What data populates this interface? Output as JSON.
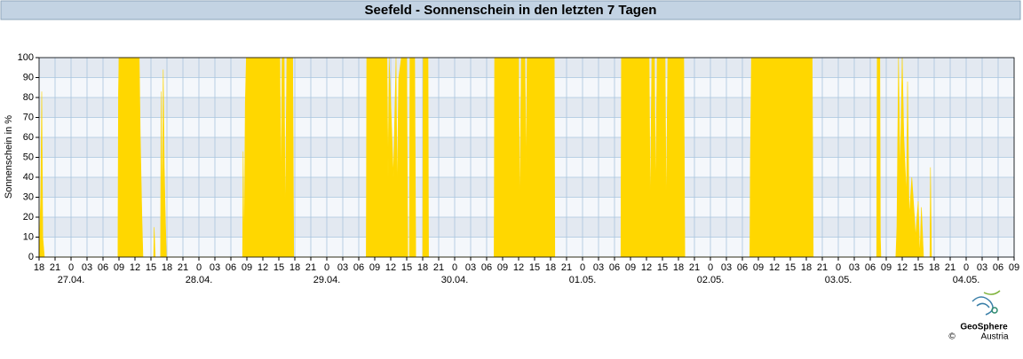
{
  "chart_data": {
    "type": "area",
    "title": "Seefeld - Sonnenschein in den letzten 7 Tagen",
    "y_label": "Sonnenschein in %",
    "color": "#ffd700",
    "grid": true,
    "xlim": [
      0,
      183
    ],
    "ylim": [
      0,
      100
    ],
    "yticks": [
      0,
      10,
      20,
      30,
      40,
      50,
      60,
      70,
      80,
      90,
      100
    ],
    "xticks": [
      {
        "value": 0,
        "label": "18"
      },
      {
        "value": 3,
        "label": "21"
      },
      {
        "value": 6,
        "label": "0"
      },
      {
        "value": 9,
        "label": "03"
      },
      {
        "value": 12,
        "label": "06"
      },
      {
        "value": 15,
        "label": "09"
      },
      {
        "value": 18,
        "label": "12"
      },
      {
        "value": 21,
        "label": "15"
      },
      {
        "value": 24,
        "label": "18"
      },
      {
        "value": 27,
        "label": "21"
      },
      {
        "value": 30,
        "label": "0"
      },
      {
        "value": 33,
        "label": "03"
      },
      {
        "value": 36,
        "label": "06"
      },
      {
        "value": 39,
        "label": "09"
      },
      {
        "value": 42,
        "label": "12"
      },
      {
        "value": 45,
        "label": "15"
      },
      {
        "value": 48,
        "label": "18"
      },
      {
        "value": 51,
        "label": "21"
      },
      {
        "value": 54,
        "label": "0"
      },
      {
        "value": 57,
        "label": "03"
      },
      {
        "value": 60,
        "label": "06"
      },
      {
        "value": 63,
        "label": "09"
      },
      {
        "value": 66,
        "label": "12"
      },
      {
        "value": 69,
        "label": "15"
      },
      {
        "value": 72,
        "label": "18"
      },
      {
        "value": 75,
        "label": "21"
      },
      {
        "value": 78,
        "label": "0"
      },
      {
        "value": 81,
        "label": "03"
      },
      {
        "value": 84,
        "label": "06"
      },
      {
        "value": 87,
        "label": "09"
      },
      {
        "value": 90,
        "label": "12"
      },
      {
        "value": 93,
        "label": "15"
      },
      {
        "value": 96,
        "label": "18"
      },
      {
        "value": 99,
        "label": "21"
      },
      {
        "value": 102,
        "label": "0"
      },
      {
        "value": 105,
        "label": "03"
      },
      {
        "value": 108,
        "label": "06"
      },
      {
        "value": 111,
        "label": "09"
      },
      {
        "value": 114,
        "label": "12"
      },
      {
        "value": 117,
        "label": "15"
      },
      {
        "value": 120,
        "label": "18"
      },
      {
        "value": 123,
        "label": "21"
      },
      {
        "value": 126,
        "label": "0"
      },
      {
        "value": 129,
        "label": "03"
      },
      {
        "value": 132,
        "label": "06"
      },
      {
        "value": 135,
        "label": "09"
      },
      {
        "value": 138,
        "label": "12"
      },
      {
        "value": 141,
        "label": "15"
      },
      {
        "value": 144,
        "label": "18"
      },
      {
        "value": 147,
        "label": "21"
      },
      {
        "value": 150,
        "label": "0"
      },
      {
        "value": 153,
        "label": "03"
      },
      {
        "value": 156,
        "label": "06"
      },
      {
        "value": 159,
        "label": "09"
      },
      {
        "value": 162,
        "label": "12"
      },
      {
        "value": 165,
        "label": "15"
      },
      {
        "value": 168,
        "label": "18"
      },
      {
        "value": 171,
        "label": "21"
      },
      {
        "value": 174,
        "label": "0"
      },
      {
        "value": 177,
        "label": "03"
      },
      {
        "value": 180,
        "label": "06"
      },
      {
        "value": 183,
        "label": "09"
      }
    ],
    "date_labels": [
      {
        "value": 6,
        "label": "27.04."
      },
      {
        "value": 30,
        "label": "28.04."
      },
      {
        "value": 54,
        "label": "29.04."
      },
      {
        "value": 78,
        "label": "30.04."
      },
      {
        "value": 102,
        "label": "01.05."
      },
      {
        "value": 126,
        "label": "02.05."
      },
      {
        "value": 150,
        "label": "03.05."
      },
      {
        "value": 174,
        "label": "04.05."
      }
    ],
    "x": [
      0,
      0.3,
      0.5,
      0.7,
      1,
      14.8,
      14.9,
      15,
      18.8,
      19,
      19.3,
      19.5,
      21.5,
      21.6,
      21.8,
      22.8,
      22.9,
      23.1,
      23.3,
      23.5,
      23.7,
      23.9,
      38.2,
      38.3,
      38.5,
      38.7,
      38.9,
      45.2,
      45.4,
      45.6,
      46,
      46.2,
      46.5,
      47.6,
      47.8,
      61.4,
      61.5,
      65.3,
      65.5,
      65.7,
      66.5,
      67,
      67.2,
      67.5,
      68,
      69,
      69.2,
      69.5,
      69.6,
      70.5,
      70.7,
      72,
      72.1,
      73,
      73.1,
      85.4,
      85.5,
      90,
      90.2,
      90.5,
      91.2,
      91.4,
      91.6,
      96.7,
      96.8,
      109.2,
      109.3,
      114.5,
      114.7,
      115,
      115.5,
      115.7,
      116,
      117.5,
      117.7,
      118,
      121,
      121.2,
      133.4,
      133.5,
      133.7,
      145.1,
      145.3,
      157.2,
      157.3,
      157.8,
      157.9,
      158,
      160.8,
      161,
      161.3,
      161.6,
      162,
      162.3,
      162.8,
      163,
      163.3,
      163.8,
      164.3,
      164.5,
      165,
      165.3,
      165.6,
      166,
      167.2,
      167.3,
      167.5
    ],
    "values": [
      0,
      30,
      83,
      10,
      0,
      0,
      82,
      100,
      100,
      60,
      20,
      0,
      0,
      15,
      0,
      0,
      83,
      20,
      94,
      45,
      20,
      0,
      0,
      53,
      0,
      77,
      100,
      100,
      30,
      100,
      100,
      15,
      100,
      100,
      0,
      0,
      100,
      100,
      40,
      100,
      40,
      100,
      30,
      90,
      100,
      100,
      0,
      0,
      100,
      100,
      0,
      0,
      100,
      100,
      0,
      0,
      100,
      100,
      20,
      100,
      100,
      40,
      100,
      100,
      0,
      0,
      100,
      100,
      20,
      100,
      100,
      30,
      100,
      100,
      20,
      100,
      100,
      0,
      0,
      50,
      100,
      100,
      0,
      0,
      100,
      100,
      10,
      0,
      0,
      15,
      100,
      40,
      100,
      60,
      30,
      88,
      20,
      40,
      20,
      10,
      28,
      0,
      25,
      0,
      0,
      45,
      0
    ]
  },
  "footer": {
    "logo": "GeoSphere",
    "sub": "Austria",
    "copyright": "©"
  }
}
